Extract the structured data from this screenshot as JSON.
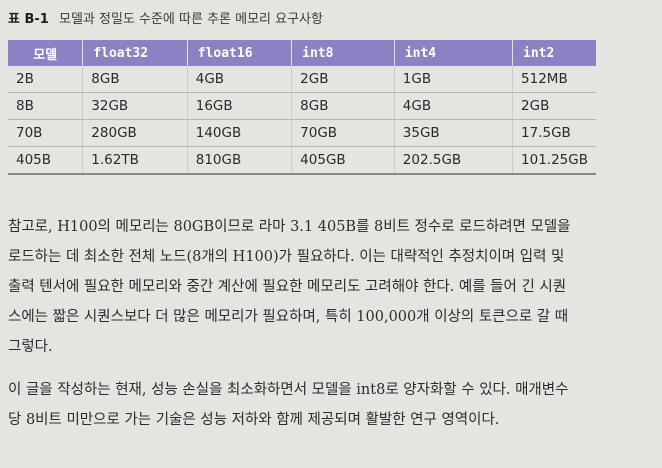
{
  "caption": {
    "label": "표 B-1",
    "text": "모델과 정밀도 수준에 따른 추론 메모리 요구사항"
  },
  "table": {
    "headers": [
      "모델",
      "float32",
      "float16",
      "int8",
      "int4",
      "int2"
    ],
    "rows": [
      [
        "2B",
        "8GB",
        "4GB",
        "2GB",
        "1GB",
        "512MB"
      ],
      [
        "8B",
        "32GB",
        "16GB",
        "8GB",
        "4GB",
        "2GB"
      ],
      [
        "70B",
        "280GB",
        "140GB",
        "70GB",
        "35GB",
        "17.5GB"
      ],
      [
        "405B",
        "1.62TB",
        "810GB",
        "405GB",
        "202.5GB",
        "101.25GB"
      ]
    ]
  },
  "paragraphs": [
    {
      "lines": [
        "참고로, H100의 메모리는 80GB이므로 라마 3.1 405B를 8비트 정수로 로드하려면 모델을",
        "로드하는 데 최소한 전체 노드(8개의 H100)가 필요하다. 이는 대략적인 추정치이며 입력 및",
        "출력 텐서에 필요한 메모리와 중간 계산에 필요한 메모리도 고려해야 한다. 예를 들어 긴 시퀀",
        "스에는 짧은 시퀀스보다 더 많은 메모리가 필요하며, 특히 100,000개 이상의 토큰으로 갈 때",
        "그렇다."
      ]
    },
    {
      "lines": [
        "이 글을 작성하는 현재, 성능 손실을 최소화하면서 모델을 int8로 양자화할 수 있다. 매개변수",
        "당 8비트 미만으로 가는 기술은 성능 저하와 함께 제공되며 활발한 연구 영역이다."
      ]
    }
  ]
}
